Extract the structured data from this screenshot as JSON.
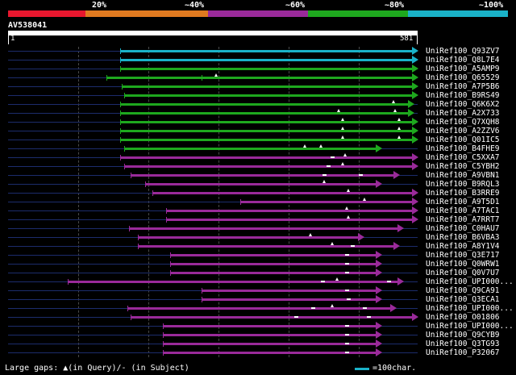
{
  "legend": {
    "labels": [
      "20%",
      "~40%",
      "~60%",
      "~80%",
      "~100%"
    ],
    "colors": [
      "#e8172e",
      "#e07a20",
      "#9a2a9a",
      "#1ea81e",
      "#1ab2c8"
    ]
  },
  "query": {
    "id": "AV538041",
    "start": "1",
    "end": "581",
    "length": 581
  },
  "hits": [
    {
      "label": "UniRef100_Q93ZV7",
      "start": 160,
      "end": 581,
      "color": "cyan"
    },
    {
      "label": "UniRef100_Q8L7E4",
      "start": 160,
      "end": 581,
      "color": "cyan"
    },
    {
      "label": "UniRef100_A5AMP9",
      "start": 160,
      "end": 581,
      "color": "green"
    },
    {
      "label": "UniRef100_Q65529",
      "start": 140,
      "end": 581,
      "color": "green"
    },
    {
      "label": "UniRef100_A7P5B6",
      "start": 162,
      "end": 581,
      "color": "green"
    },
    {
      "label": "UniRef100_B9RS49",
      "start": 165,
      "end": 581,
      "color": "green"
    },
    {
      "label": "UniRef100_Q6K6X2",
      "start": 160,
      "end": 575,
      "color": "green"
    },
    {
      "label": "UniRef100_A2X733",
      "start": 160,
      "end": 575,
      "color": "green"
    },
    {
      "label": "UniRef100_Q7XQH8",
      "start": 160,
      "end": 581,
      "color": "green"
    },
    {
      "label": "UniRef100_A2ZZV6",
      "start": 160,
      "end": 581,
      "color": "green"
    },
    {
      "label": "UniRef100_Q01IC5",
      "start": 160,
      "end": 581,
      "color": "green"
    },
    {
      "label": "UniRef100_B4FHE9",
      "start": 165,
      "end": 530,
      "color": "green"
    },
    {
      "label": "UniRef100_C5XXA7",
      "start": 160,
      "end": 581,
      "color": "purple"
    },
    {
      "label": "UniRef100_C5YBH2",
      "start": 165,
      "end": 581,
      "color": "purple"
    },
    {
      "label": "UniRef100_A9VBN1",
      "start": 175,
      "end": 555,
      "color": "purple"
    },
    {
      "label": "UniRef100_B9RQL3",
      "start": 195,
      "end": 530,
      "color": "purple"
    },
    {
      "label": "UniRef100_B3RRE9",
      "start": 205,
      "end": 581,
      "color": "purple"
    },
    {
      "label": "UniRef100_A9T5D1",
      "start": 330,
      "end": 581,
      "color": "purple"
    },
    {
      "label": "UniRef100_A7TAC1",
      "start": 225,
      "end": 581,
      "color": "purple"
    },
    {
      "label": "UniRef100_A7RRT7",
      "start": 225,
      "end": 581,
      "color": "purple"
    },
    {
      "label": "UniRef100_C0HAU7",
      "start": 172,
      "end": 560,
      "color": "purple"
    },
    {
      "label": "UniRef100_B6VBA3",
      "start": 185,
      "end": 505,
      "color": "purple"
    },
    {
      "label": "UniRef100_A8Y1V4",
      "start": 185,
      "end": 555,
      "color": "purple"
    },
    {
      "label": "UniRef100_Q3E717",
      "start": 230,
      "end": 530,
      "color": "purple"
    },
    {
      "label": "UniRef100_Q0WRW1",
      "start": 230,
      "end": 530,
      "color": "purple"
    },
    {
      "label": "UniRef100_Q0V7U7",
      "start": 230,
      "end": 530,
      "color": "purple"
    },
    {
      "label": "UniRef100_UPI000...",
      "start": 85,
      "end": 560,
      "color": "purple"
    },
    {
      "label": "UniRef100_Q9CA91",
      "start": 275,
      "end": 530,
      "color": "purple"
    },
    {
      "label": "UniRef100_Q3ECA1",
      "start": 275,
      "end": 530,
      "color": "purple"
    },
    {
      "label": "UniRef100_UPI000...",
      "start": 170,
      "end": 550,
      "color": "purple"
    },
    {
      "label": "UniRef100_O01806",
      "start": 175,
      "end": 581,
      "color": "purple"
    },
    {
      "label": "UniRef100_UPI000...",
      "start": 220,
      "end": 530,
      "color": "purple"
    },
    {
      "label": "UniRef100_Q9CYB9",
      "start": 220,
      "end": 530,
      "color": "purple"
    },
    {
      "label": "UniRef100_Q3TG93",
      "start": 220,
      "end": 530,
      "color": "purple"
    },
    {
      "label": "UniRef100_P32067",
      "start": 220,
      "end": 530,
      "color": "purple"
    }
  ],
  "footer": {
    "gaps_text": "Large gaps: ▲(in Query)/- (in Subject)",
    "scale_text": "=100char."
  }
}
